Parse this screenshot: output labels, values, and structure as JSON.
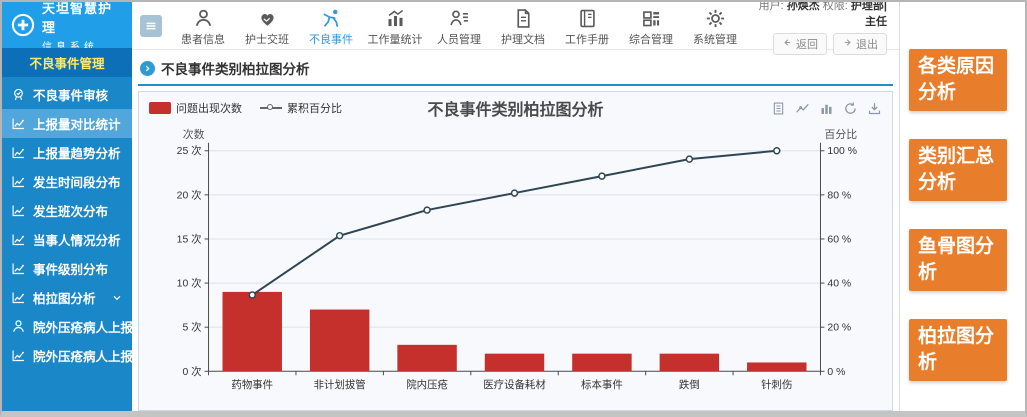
{
  "app": {
    "logo_line1": "天坦智慧护理",
    "logo_line2": "信息系统"
  },
  "topnav": {
    "items": [
      {
        "id": "patient-info",
        "label": "患者信息",
        "icon": "patient-icon"
      },
      {
        "id": "nurse-handover",
        "label": "护士交班",
        "icon": "handover-icon"
      },
      {
        "id": "adverse-events",
        "label": "不良事件",
        "icon": "adverse-event-icon",
        "active": true
      },
      {
        "id": "workload-stats",
        "label": "工作量统计",
        "icon": "workload-icon"
      },
      {
        "id": "staff-management",
        "label": "人员管理",
        "icon": "staff-icon"
      },
      {
        "id": "nursing-documents",
        "label": "护理文档",
        "icon": "document-icon"
      },
      {
        "id": "work-handbook",
        "label": "工作手册",
        "icon": "handbook-icon"
      },
      {
        "id": "comprehensive-management",
        "label": "综合管理",
        "icon": "apps-icon"
      },
      {
        "id": "system-management",
        "label": "系统管理",
        "icon": "gear-icon"
      }
    ],
    "user_label": "用户:",
    "user_name": "孙焕杰",
    "role_label": "权限:",
    "role_value": "护理部|主任",
    "back_button": "返回",
    "logout_button": "退出"
  },
  "sidebar": {
    "header": "不良事件管理",
    "items": [
      {
        "id": "adverse-event-audit",
        "label": "不良事件审核",
        "icon": "audit-icon"
      },
      {
        "id": "report-volume-comparison",
        "label": "上报量对比统计",
        "icon": "chart-line-icon",
        "active": true
      },
      {
        "id": "report-volume-trend",
        "label": "上报量趋势分析",
        "icon": "chart-line-icon"
      },
      {
        "id": "time-period-distribution",
        "label": "发生时间段分布",
        "icon": "chart-line-icon"
      },
      {
        "id": "shift-distribution",
        "label": "发生班次分布",
        "icon": "chart-line-icon"
      },
      {
        "id": "involved-person-analysis",
        "label": "当事人情况分析",
        "icon": "chart-line-icon"
      },
      {
        "id": "event-level-distribution",
        "label": "事件级别分布",
        "icon": "chart-line-icon"
      },
      {
        "id": "pareto-analysis",
        "label": "柏拉图分析",
        "icon": "chart-line-icon",
        "chevron": true
      },
      {
        "id": "external-pressure-ulcer-report-1",
        "label": "院外压疮病人上报表",
        "icon": "person-icon"
      },
      {
        "id": "external-pressure-ulcer-report-2",
        "label": "院外压疮病人上报表",
        "icon": "chart-line-icon"
      }
    ]
  },
  "main": {
    "breadcrumb": "不良事件类别柏拉图分析",
    "chart_toolbox": [
      "data-view-icon",
      "line-chart-icon",
      "bar-chart-icon",
      "restore-icon",
      "download-icon"
    ]
  },
  "chart_data": {
    "type": "bar",
    "subtype": "pareto (bar + cumulative line)",
    "title": "不良事件类别柏拉图分析",
    "categories": [
      "药物事件",
      "非计划拔管",
      "院内压疮",
      "医疗设备耗材",
      "标本事件",
      "跌倒",
      "针刺伤"
    ],
    "series": [
      {
        "name": "问题出现次数",
        "type": "bar",
        "values": [
          9,
          7,
          3,
          2,
          2,
          2,
          1
        ],
        "color": "#c6302c"
      },
      {
        "name": "累积百分比",
        "type": "line",
        "values": [
          34.6,
          61.5,
          73.1,
          80.8,
          88.5,
          96.2,
          100
        ],
        "color": "#2f4554"
      }
    ],
    "y_left": {
      "label": "次数",
      "min": 0,
      "max": 25,
      "step": 5,
      "suffix": " 次"
    },
    "y_right": {
      "label": "百分比",
      "min": 0,
      "max": 100,
      "step": 20,
      "suffix": " %"
    },
    "legend_position": "top-left",
    "grid": true
  },
  "side_actions": [
    {
      "id": "cause-analysis",
      "label": "各类原因分析"
    },
    {
      "id": "category-summary-analysis",
      "label": "类别汇总分析"
    },
    {
      "id": "fishbone-analysis",
      "label": "鱼骨图分析"
    },
    {
      "id": "pareto-chart-analysis",
      "label": "柏拉图分析"
    }
  ]
}
